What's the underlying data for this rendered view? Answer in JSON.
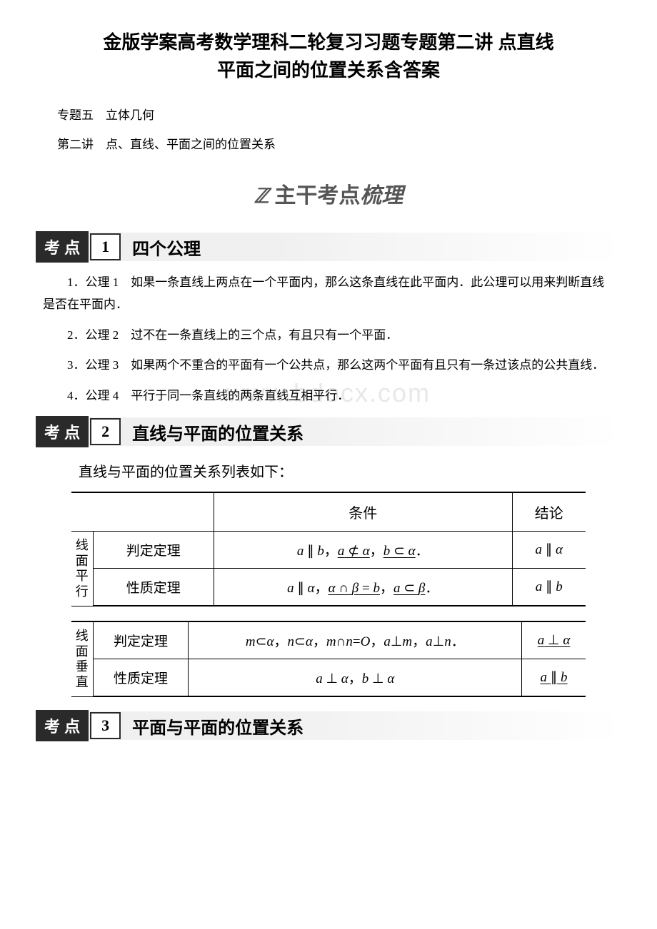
{
  "title_line1": "金版学案高考数学理科二轮复习习题专题第二讲 点直线",
  "title_line2": "平面之间的位置关系含答案",
  "subtitle1": "专题五　立体几何",
  "subtitle2": "第二讲　点、直线、平面之间的位置关系",
  "section_banner": {
    "z": "ℤ",
    "text_plain": "主干考点",
    "text_fancy": "梳理"
  },
  "watermark": "www.bdocx.com",
  "kaodian": [
    {
      "label": "考 点",
      "num": "1",
      "title": "四个公理",
      "items": [
        "1．公理 1　如果一条直线上两点在一个平面内，那么这条直线在此平面内．此公理可以用来判断直线是否在平面内．",
        "2．公理 2　过不在一条直线上的三个点，有且只有一个平面．",
        "3．公理 3　如果两个不重合的平面有一个公共点，那么这两个平面有且只有一条过该点的公共直线．",
        "4．公理 4　平行于同一条直线的两条直线互相平行．"
      ]
    },
    {
      "label": "考 点",
      "num": "2",
      "title": "直线与平面的位置关系",
      "intro": "直线与平面的位置关系列表如下：",
      "table1": {
        "header": [
          "",
          "",
          "条件",
          "结论"
        ],
        "rows": [
          {
            "group": "线面平行",
            "type": "判定定理",
            "cond_html": "<span class='math'>a</span> ∥ <span class='math'>b</span>，<span class='underline'><span class='math'>a</span> ⊄ <span class='math'>α</span></span>，<span class='underline'><span class='math'>b</span> ⊂ <span class='math'>α</span></span>．",
            "result_html": "<span class='math'>a</span> ∥ <span class='math'>α</span>"
          },
          {
            "type": "性质定理",
            "cond_html": "<span class='math'>a</span> ∥ <span class='math'>α</span>，<span class='underline'><span class='math'>α</span> ∩ <span class='math'>β</span> = <span class='math'>b</span></span>，<span class='underline'><span class='math'>a</span> ⊂ <span class='math'>β</span></span>．",
            "result_html": "<span class='math'>a</span> ∥ <span class='math'>b</span>"
          }
        ]
      },
      "table2": {
        "rows": [
          {
            "group": "线面垂直",
            "type": "判定定理",
            "cond_html": "<span class='math'>m</span>⊂<span class='math'>α</span>，<span class='math'>n</span>⊂<span class='math'>α</span>，<span class='math'>m</span>∩<span class='math'>n</span>=<span class='math'>O</span>，<span class='math'>a</span>⊥<span class='math'>m</span>，<span class='math'>a</span>⊥<span class='math'>n</span>．",
            "result_html": "<span class='underline'><span class='math'>a</span> ⊥ <span class='math'>α</span></span>"
          },
          {
            "type": "性质定理",
            "cond_html": "<span class='math'>a</span> ⊥ <span class='math'>α</span>，<span class='math'>b</span> ⊥ <span class='math'>α</span>",
            "result_html": "<span class='underline'><span class='math'>a</span> ∥ <span class='math'>b</span></span>"
          }
        ]
      }
    },
    {
      "label": "考 点",
      "num": "3",
      "title": "平面与平面的位置关系"
    }
  ]
}
